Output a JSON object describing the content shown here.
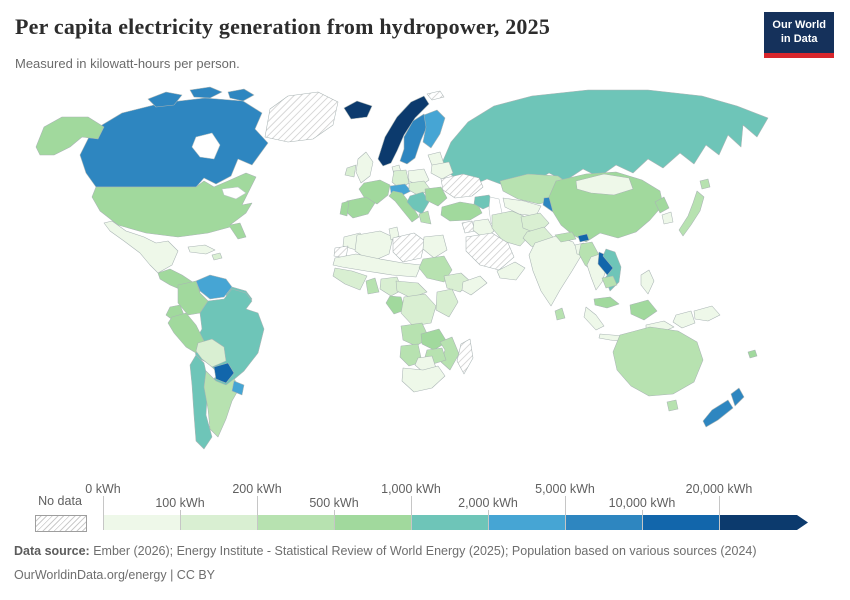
{
  "header": {
    "title": "Per capita electricity generation from hydropower, 2025",
    "subtitle": "Measured in kilowatt-hours per person."
  },
  "logo": {
    "line1": "Our World",
    "line2": "in Data",
    "bg": "#15315b",
    "accent": "#d8262c"
  },
  "legend": {
    "no_data_label": "No data",
    "ticks": [
      "0 kWh",
      "100 kWh",
      "200 kWh",
      "500 kWh",
      "1,000 kWh",
      "2,000 kWh",
      "5,000 kWh",
      "10,000 kWh",
      "20,000 kWh"
    ]
  },
  "footer": {
    "source_label": "Data source:",
    "source_text": "Ember (2026); Energy Institute - Statistical Review of World Energy (2025); Population based on various sources (2024)",
    "line2": "OurWorldinData.org/energy | CC BY"
  },
  "chart_data": {
    "type": "choropleth",
    "title": "Per capita electricity generation from hydropower, 2025",
    "unit": "kilowatt-hours per person",
    "bin_labels": [
      "0–100",
      "100–200",
      "200–500",
      "500–1,000",
      "1,000–2,000",
      "2,000–5,000",
      "5,000–10,000",
      "10,000–20,000",
      "20,000+"
    ],
    "bin_colors": [
      "#eef8e9",
      "#d9efd2",
      "#b7e2b0",
      "#a1d99d",
      "#6ec5b8",
      "#46a5d4",
      "#2e86c0",
      "#1266ab",
      "#0c3a6d"
    ],
    "no_data_pattern": "diagonal-hatch",
    "regions": {
      "greenland": "no_data",
      "canada": 6,
      "canada-island-1": 6,
      "canada-island-2": 6,
      "canada-island-3": 6,
      "alaska": 3,
      "usa": 3,
      "mexico": 0,
      "central-america": 3,
      "cuba": 0,
      "hispaniola": 1,
      "venezuela": 5,
      "colombia": 3,
      "guyanas": 4,
      "ecuador": 3,
      "brazil": 4,
      "peru": 3,
      "bolivia": 1,
      "paraguay": 7,
      "chile": 4,
      "argentina": 2,
      "uruguay": 5,
      "iceland": 8,
      "uk": 0,
      "ireland": 1,
      "norway": 8,
      "sweden": 6,
      "finland": 5,
      "denmark": 0,
      "baltics": 0,
      "poland": 0,
      "germany": 1,
      "france": 3,
      "spain": 3,
      "portugal": 3,
      "italy": 3,
      "alps": 5,
      "central-europe": 1,
      "balkans": 4,
      "greece": 2,
      "romania-bulgaria": 3,
      "belarus": 0,
      "ukraine": "no_data",
      "svalbard": "no_data",
      "russia": 4,
      "turkey": 3,
      "caucasus": 4,
      "syria": "no_data",
      "iraq": 0,
      "iran": 1,
      "saudi-arabia": "no_data",
      "yemen-oman": 0,
      "kazakhstan": 2,
      "uzbek-turkmen": 0,
      "kyrgyz-tajik": 6,
      "afghanistan": 1,
      "pakistan": 1,
      "india": 0,
      "nepal": 2,
      "bhutan": 7,
      "bangladesh": 0,
      "sri-lanka": 2,
      "myanmar": 2,
      "thailand": 0,
      "laos": 7,
      "vietnam": 4,
      "cambodia": 2,
      "malaysia": 3,
      "borneo-malaysia": 3,
      "sumatra": 0,
      "java": 0,
      "lesser-sunda": 0,
      "west-papua": 0,
      "papua-new-guinea": 0,
      "philippines": 0,
      "china": 3,
      "mongolia": 0,
      "north-korea": 3,
      "south-korea": 0,
      "japan": 2,
      "hokkaido": 2,
      "morocco": 0,
      "western-sahara": "no_data",
      "algeria": 0,
      "tunisia": 0,
      "libya": "no_data",
      "egypt": 0,
      "sahel": 0,
      "west-africa": 1,
      "ghana": 2,
      "nigeria": 1,
      "sudan": 2,
      "ethiopia": 1,
      "somalia": 0,
      "central-africa": 1,
      "gabon": 3,
      "drc": 1,
      "east-africa": 1,
      "angola": 2,
      "zambia": 3,
      "mozambique": 2,
      "zimbabwe": 2,
      "namibia": 2,
      "botswana": 0,
      "south-africa": 0,
      "madagascar": "no_data",
      "australia": 2,
      "tasmania": 2,
      "new-zealand-north": 6,
      "new-zealand-south": 6,
      "fiji": 3
    }
  }
}
